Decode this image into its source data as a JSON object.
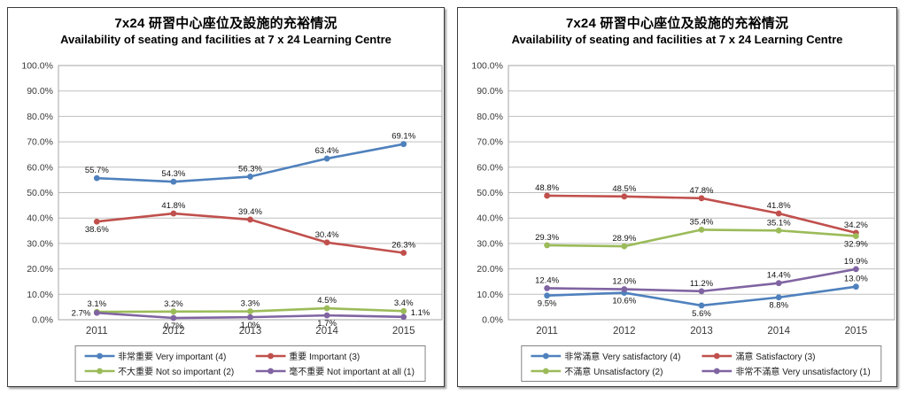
{
  "chart_data": [
    {
      "type": "line",
      "title_zh": "7x24 研習中心座位及設施的充裕情況",
      "title_en": "Availability of seating and facilities at 7 x 24 Learning Centre",
      "categories": [
        "2011",
        "2012",
        "2013",
        "2014",
        "2015"
      ],
      "ylim": [
        0,
        100
      ],
      "ytick_step": 10,
      "ytick_suffix": "%",
      "grid": true,
      "legend_position": "bottom",
      "series": [
        {
          "name": "非常重要 Very important (4)",
          "color": "#4F81BD",
          "values": [
            55.7,
            54.3,
            56.3,
            63.4,
            69.1
          ],
          "label_pos": [
            "above",
            "above",
            "above",
            "above",
            "above"
          ]
        },
        {
          "name": "重要 Important (3)",
          "color": "#C0504D",
          "values": [
            38.6,
            41.8,
            39.4,
            30.4,
            26.3
          ],
          "label_pos": [
            "below",
            "above",
            "above",
            "above",
            "above"
          ]
        },
        {
          "name": "不大重要 Not so important (2)",
          "color": "#9BBB59",
          "values": [
            3.1,
            3.2,
            3.3,
            4.5,
            3.4
          ],
          "label_pos": [
            "above",
            "above",
            "above",
            "above",
            "above"
          ]
        },
        {
          "name": "毫不重要 Not important at all (1)",
          "color": "#8064A2",
          "values": [
            2.7,
            0.7,
            1.0,
            1.7,
            1.1
          ],
          "label_pos": [
            "left",
            "below",
            "below",
            "below",
            "right"
          ]
        }
      ]
    },
    {
      "type": "line",
      "title_zh": "7x24 研習中心座位及設施的充裕情況",
      "title_en": "Availability of seating and facilities at 7 x 24 Learning Centre",
      "categories": [
        "2011",
        "2012",
        "2013",
        "2014",
        "2015"
      ],
      "ylim": [
        0,
        100
      ],
      "ytick_step": 10,
      "ytick_suffix": "%",
      "grid": true,
      "legend_position": "bottom",
      "series": [
        {
          "name": "非常滿意 Very satisfactory (4)",
          "color": "#4F81BD",
          "values": [
            9.5,
            10.6,
            5.6,
            8.8,
            13.0
          ],
          "label_pos": [
            "below",
            "below",
            "below",
            "below",
            "above"
          ]
        },
        {
          "name": "滿意 Satisfactory (3)",
          "color": "#C0504D",
          "values": [
            48.8,
            48.5,
            47.8,
            41.8,
            34.2
          ],
          "label_pos": [
            "above",
            "above",
            "above",
            "above",
            "above"
          ]
        },
        {
          "name": "不滿意 Unsatisfactory (2)",
          "color": "#9BBB59",
          "values": [
            29.3,
            28.9,
            35.4,
            35.1,
            32.9
          ],
          "label_pos": [
            "above",
            "above",
            "above",
            "above",
            "below"
          ]
        },
        {
          "name": "非常不滿意 Very unsatisfactory (1)",
          "color": "#8064A2",
          "values": [
            12.4,
            12.0,
            11.2,
            14.4,
            19.9
          ],
          "label_pos": [
            "above",
            "above",
            "above",
            "above",
            "above"
          ]
        }
      ]
    }
  ]
}
